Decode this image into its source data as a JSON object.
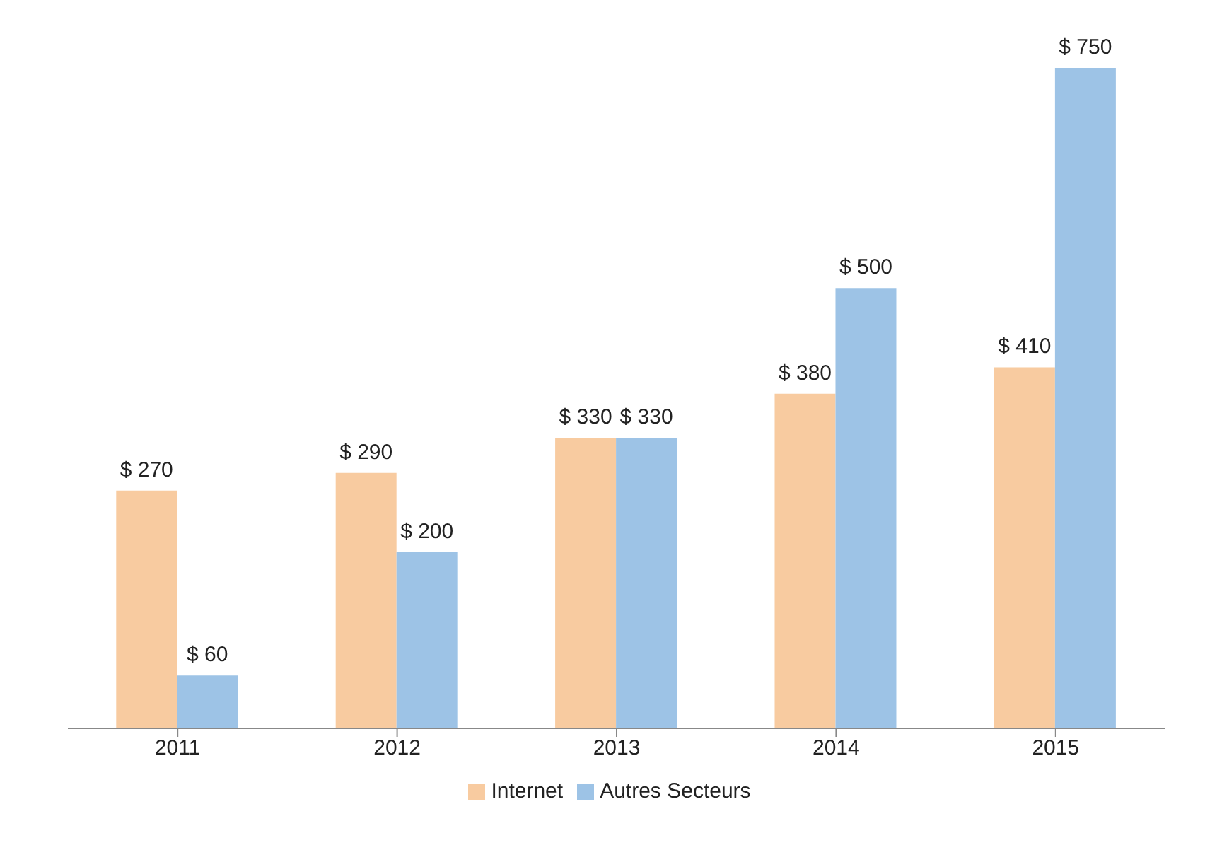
{
  "chart_data": {
    "type": "bar",
    "categories": [
      "2011",
      "2012",
      "2013",
      "2014",
      "2015"
    ],
    "series": [
      {
        "name": "Internet",
        "color": "#f8cba0",
        "values": [
          270,
          290,
          330,
          380,
          410
        ],
        "value_labels": [
          "$ 270",
          "$ 290",
          "$ 330",
          "$ 380",
          "$ 410"
        ]
      },
      {
        "name": "Autres Secteurs",
        "color": "#9dc3e6",
        "values": [
          60,
          200,
          330,
          500,
          750
        ],
        "value_labels": [
          "$ 60",
          "$ 200",
          "$ 330",
          "$ 500",
          "$ 750"
        ]
      }
    ],
    "legend": "bottom",
    "tick_labels": "x"
  }
}
